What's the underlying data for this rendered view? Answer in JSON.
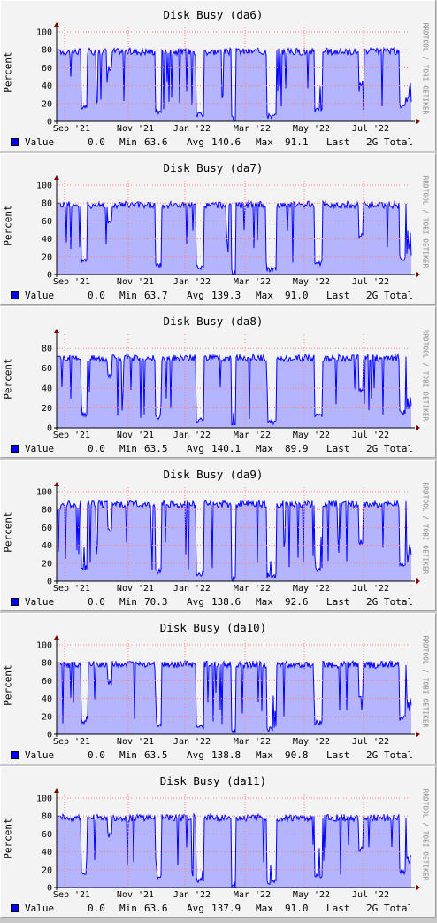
{
  "chart_data": [
    {
      "type": "area",
      "title": "Disk Busy (da6)",
      "ylabel": "Percent",
      "ylim": [
        0,
        100
      ],
      "yticks": [
        "0",
        "20",
        "40",
        "60",
        "80",
        "100"
      ],
      "xticks": [
        "Sep '21",
        "Nov '21",
        "Jan '22",
        "Mar '22",
        "May '22",
        "Jul '22"
      ],
      "legend": {
        "name": "Value",
        "min": "0.0",
        "avg": "63.6",
        "max": "140.6",
        "last": "91.1",
        "total": "2G"
      }
    },
    {
      "type": "area",
      "title": "Disk Busy (da7)",
      "ylabel": "Percent",
      "ylim": [
        0,
        100
      ],
      "yticks": [
        "0",
        "20",
        "40",
        "60",
        "80",
        "100"
      ],
      "xticks": [
        "Sep '21",
        "Nov '21",
        "Jan '22",
        "Mar '22",
        "May '22",
        "Jul '22"
      ],
      "legend": {
        "name": "Value",
        "min": "0.0",
        "avg": "63.7",
        "max": "139.3",
        "last": "91.0",
        "total": "2G"
      }
    },
    {
      "type": "area",
      "title": "Disk Busy (da8)",
      "ylabel": "Percent",
      "ylim": [
        0,
        90
      ],
      "yticks": [
        "0",
        "20",
        "40",
        "60",
        "80"
      ],
      "xticks": [
        "Sep '21",
        "Nov '21",
        "Jan '22",
        "Mar '22",
        "May '22",
        "Jul '22"
      ],
      "legend": {
        "name": "Value",
        "min": "0.0",
        "avg": "63.5",
        "max": "140.1",
        "last": "89.9",
        "total": "2G"
      }
    },
    {
      "type": "area",
      "title": "Disk Busy (da9)",
      "ylabel": "Percent",
      "ylim": [
        0,
        100
      ],
      "yticks": [
        "0",
        "20",
        "40",
        "60",
        "80",
        "100"
      ],
      "xticks": [
        "Sep '21",
        "Nov '21",
        "Jan '22",
        "Mar '22",
        "May '22",
        "Jul '22"
      ],
      "legend": {
        "name": "Value",
        "min": "0.0",
        "avg": "70.3",
        "max": "138.6",
        "last": "92.6",
        "total": "2G"
      }
    },
    {
      "type": "area",
      "title": "Disk Busy (da10)",
      "ylabel": "Percent",
      "ylim": [
        0,
        100
      ],
      "yticks": [
        "0",
        "20",
        "40",
        "60",
        "80",
        "100"
      ],
      "xticks": [
        "Sep '21",
        "Nov '21",
        "Jan '22",
        "Mar '22",
        "May '22",
        "Jul '22"
      ],
      "legend": {
        "name": "Value",
        "min": "0.0",
        "avg": "63.5",
        "max": "138.8",
        "last": "90.8",
        "total": "2G"
      }
    },
    {
      "type": "area",
      "title": "Disk Busy (da11)",
      "ylabel": "Percent",
      "ylim": [
        0,
        100
      ],
      "yticks": [
        "0",
        "20",
        "40",
        "60",
        "80",
        "100"
      ],
      "xticks": [
        "Sep '21",
        "Nov '21",
        "Jan '22",
        "Mar '22",
        "May '22",
        "Jul '22"
      ],
      "legend": {
        "name": "Value",
        "min": "0.0",
        "avg": "63.6",
        "max": "137.9",
        "last": "91.0",
        "total": "2G"
      }
    }
  ],
  "watermark": "RRDTOOL / TOBI OETIKER",
  "legend_labels": {
    "min": "Min",
    "avg": "Avg",
    "max": "Max",
    "last": "Last",
    "total": "Total"
  },
  "colors": {
    "area": "#b4b4ff",
    "line": "#0000ff",
    "grid": "#ff8080",
    "arrow": "#800000"
  }
}
